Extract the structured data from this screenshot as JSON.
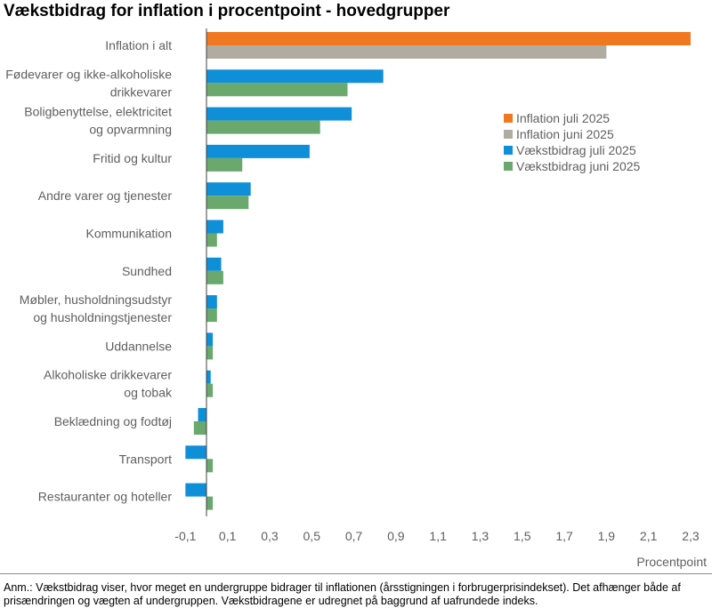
{
  "title": "Vækstbidrag for inflation i procentpoint - hovedgrupper",
  "note": "Anm.: Vækstbidrag viser, hvor meget en undergruppe bidrager til inflationen (årsstigningen i forbrugerprisindekset). Det afhænger både af prisændringen og vægten af undergruppen. Vækstbidragene er udregnet på baggrund af uafrundede indeks.",
  "chart_data": {
    "type": "bar",
    "orientation": "horizontal",
    "title": "Vækstbidrag for inflation i procentpoint - hovedgrupper",
    "xlabel": "Procentpoint",
    "xlim": [
      -0.2,
      2.3
    ],
    "xticks": [
      "-0,1",
      "0,1",
      "0,3",
      "0,5",
      "0,7",
      "0,9",
      "1,1",
      "1,3",
      "1,5",
      "1,7",
      "1,9",
      "2,1",
      "2,3"
    ],
    "xtick_values": [
      -0.1,
      0.1,
      0.3,
      0.5,
      0.7,
      0.9,
      1.1,
      1.3,
      1.5,
      1.7,
      1.9,
      2.1,
      2.3
    ],
    "grid": false,
    "legend_position": "right",
    "categories": [
      [
        "Inflation i alt"
      ],
      [
        "Fødevarer og ikke-alkoholiske",
        "drikkevarer"
      ],
      [
        "Boligbenyttelse, elektricitet",
        "og opvarmning"
      ],
      [
        "Fritid og kultur"
      ],
      [
        "Andre varer og tjenester"
      ],
      [
        "Kommunikation"
      ],
      [
        "Sundhed"
      ],
      [
        "Møbler, husholdningsudstyr",
        "og husholdningstjenester"
      ],
      [
        "Uddannelse"
      ],
      [
        "Alkoholiske drikkevarer",
        "og tobak"
      ],
      [
        "Beklædning og fodtøj"
      ],
      [
        "Transport"
      ],
      [
        "Restauranter og hoteller"
      ]
    ],
    "series": [
      {
        "name": "Inflation juli 2025",
        "color": "#f07820",
        "values": [
          2.3,
          null,
          null,
          null,
          null,
          null,
          null,
          null,
          null,
          null,
          null,
          null,
          null
        ]
      },
      {
        "name": "Inflation juni 2025",
        "color": "#b0aca2",
        "values": [
          1.9,
          null,
          null,
          null,
          null,
          null,
          null,
          null,
          null,
          null,
          null,
          null,
          null
        ]
      },
      {
        "name": "Vækstbidrag juli 2025",
        "color": "#0f8fd8",
        "values": [
          null,
          0.84,
          0.69,
          0.49,
          0.21,
          0.08,
          0.07,
          0.05,
          0.03,
          0.02,
          -0.04,
          -0.1,
          -0.1
        ]
      },
      {
        "name": "Vækstbidrag juni 2025",
        "color": "#6aa86e",
        "values": [
          null,
          0.67,
          0.54,
          0.17,
          0.2,
          0.05,
          0.08,
          0.05,
          0.03,
          0.03,
          -0.06,
          0.03,
          0.03
        ]
      }
    ]
  }
}
